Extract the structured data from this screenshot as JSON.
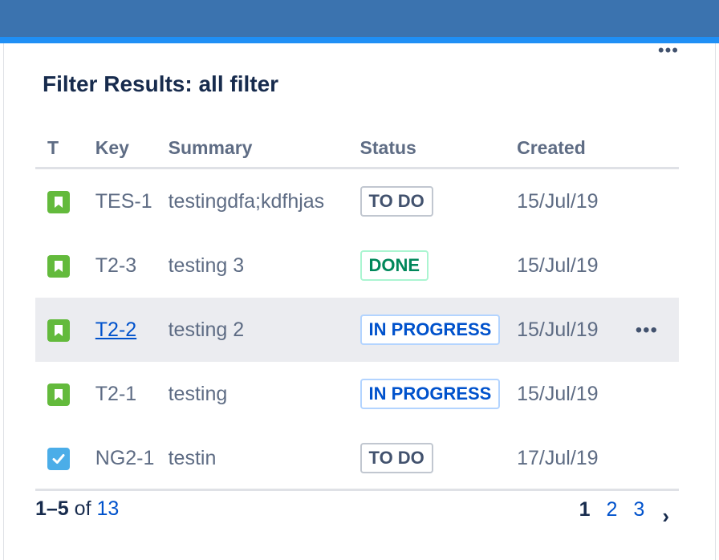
{
  "gadget": {
    "title": "Filter Results: all filter",
    "menu_glyph": "•••"
  },
  "table": {
    "headers": {
      "type": "T",
      "key": "Key",
      "summary": "Summary",
      "status": "Status",
      "created": "Created"
    },
    "rows": [
      {
        "issue_type": "story",
        "key": "TES-1",
        "summary": "testingdfa;kdfhjas",
        "status": "TO DO",
        "status_color": "#42526e",
        "created": "15/Jul/19"
      },
      {
        "issue_type": "story",
        "key": "T2-3",
        "summary": "testing 3",
        "status": "DONE",
        "status_color": "#00875a",
        "created": "15/Jul/19"
      },
      {
        "issue_type": "story",
        "key": "T2-2",
        "summary": "testing 2",
        "status": "IN PROGRESS",
        "status_color": "#0052cc",
        "created": "15/Jul/19",
        "hovered": true,
        "row_actions_glyph": "•••"
      },
      {
        "issue_type": "story",
        "key": "T2-1",
        "summary": "testing",
        "status": "IN PROGRESS",
        "status_color": "#0052cc",
        "created": "15/Jul/19"
      },
      {
        "issue_type": "task",
        "key": "NG2-1",
        "summary": "testin",
        "status": "TO DO",
        "status_color": "#42526e",
        "created": "17/Jul/19"
      }
    ]
  },
  "footer": {
    "range": "1–5",
    "of_label": "of",
    "total": "13",
    "pages": [
      "1",
      "2",
      "3"
    ],
    "current_page": "1",
    "next_glyph": "›"
  },
  "colors": {
    "topbar": "#3b73af",
    "topbar_accent": "#1f8ff5",
    "link": "#0052cc",
    "story_icon": "#63ba3c",
    "task_icon": "#4bade8"
  },
  "icons": {
    "story": "bookmark-icon",
    "task": "checkbox-icon",
    "menu": "more-icon",
    "next": "chevron-right-icon"
  }
}
